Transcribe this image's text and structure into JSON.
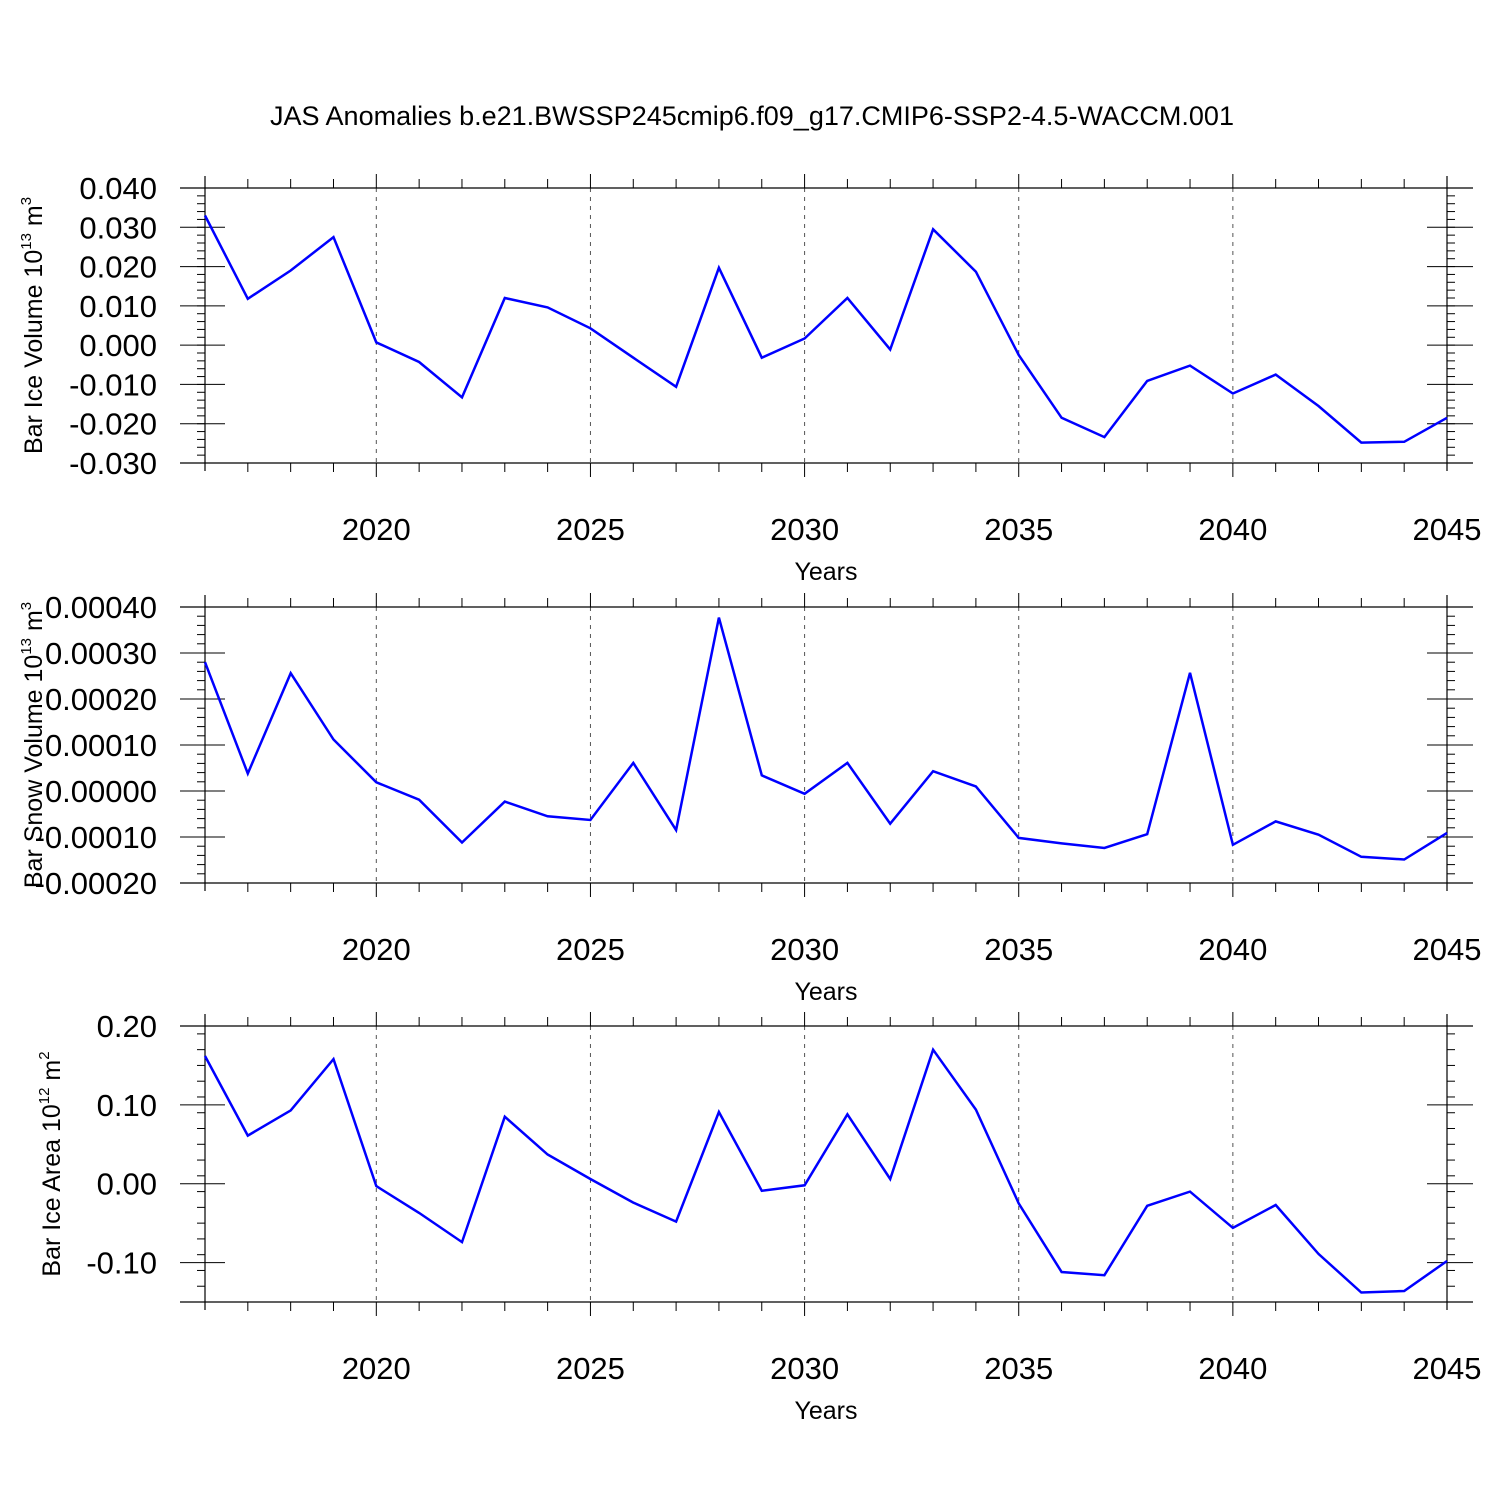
{
  "title": "JAS Anomalies b.e21.BWSSP245cmip6.f09_g17.CMIP6-SSP2-4.5-WACCM.001",
  "chart_data": [
    {
      "type": "line",
      "ylabel": "Bar Ice Volume 10",
      "ylabel_exp": "13",
      "ylabel_unit": " m",
      "ylabel_unit_exp": "3",
      "xlabel": "Years",
      "x": [
        2016,
        2017,
        2018,
        2019,
        2020,
        2021,
        2022,
        2023,
        2024,
        2025,
        2026,
        2027,
        2028,
        2029,
        2030,
        2031,
        2032,
        2033,
        2034,
        2035,
        2036,
        2037,
        2038,
        2039,
        2040,
        2041,
        2042,
        2043,
        2044,
        2045
      ],
      "series": [
        {
          "values": [
            0.033,
            0.0118,
            0.019,
            0.0275,
            0.0007,
            -0.0043,
            -0.0133,
            0.012,
            0.0096,
            0.0043,
            -0.0032,
            -0.0106,
            0.0197,
            -0.0032,
            0.0017,
            0.012,
            -0.0011,
            0.0295,
            0.0187,
            -0.0025,
            -0.0185,
            -0.0234,
            -0.0091,
            -0.0052,
            -0.0123,
            -0.0075,
            -0.0155,
            -0.0248,
            -0.0246,
            -0.0185
          ],
          "color": "#0000ff"
        }
      ],
      "xlim": [
        2016,
        2045
      ],
      "ylim": [
        -0.03,
        0.04
      ],
      "yticks": [
        -0.03,
        -0.02,
        -0.01,
        0.0,
        0.01,
        0.02,
        0.03,
        0.04
      ],
      "yticklabels": [
        "-0.030",
        "-0.020",
        "-0.010",
        "0.000",
        "0.010",
        "0.020",
        "0.030",
        "0.040"
      ],
      "xticks": [
        2020,
        2025,
        2030,
        2035,
        2040,
        2045
      ],
      "xticklabels": [
        "2020",
        "2025",
        "2030",
        "2035",
        "2040",
        "2045"
      ]
    },
    {
      "type": "line",
      "ylabel": "Bar Snow Volume 10",
      "ylabel_exp": "13",
      "ylabel_unit": " m",
      "ylabel_unit_exp": "3",
      "xlabel": "Years",
      "x": [
        2016,
        2017,
        2018,
        2019,
        2020,
        2021,
        2022,
        2023,
        2024,
        2025,
        2026,
        2027,
        2028,
        2029,
        2030,
        2031,
        2032,
        2033,
        2034,
        2035,
        2036,
        2037,
        2038,
        2039,
        2040,
        2041,
        2042,
        2043,
        2044,
        2045
      ],
      "series": [
        {
          "values": [
            0.00028,
            3.8e-05,
            0.000256,
            0.000112,
            1.9e-05,
            -1.9e-05,
            -0.000112,
            -2.3e-05,
            -5.5e-05,
            -6.3e-05,
            6.1e-05,
            -8.5e-05,
            0.000377,
            3.4e-05,
            -6e-06,
            6.1e-05,
            -7.1e-05,
            4.3e-05,
            1e-05,
            -0.000102,
            -0.000114,
            -0.000124,
            -9.4e-05,
            0.000257,
            -0.000117,
            -6.6e-05,
            -9.5e-05,
            -0.000143,
            -0.000149,
            -9.1e-05
          ],
          "color": "#0000ff"
        }
      ],
      "xlim": [
        2016,
        2045
      ],
      "ylim": [
        -0.0002,
        0.0004
      ],
      "yticks": [
        -0.0002,
        -0.0001,
        0.0,
        0.0001,
        0.0002,
        0.0003,
        0.0004
      ],
      "yticklabels": [
        "-0.00020",
        "-0.00010",
        "0.00000",
        "0.00010",
        "0.00020",
        "0.00030",
        "0.00040"
      ],
      "xticks": [
        2020,
        2025,
        2030,
        2035,
        2040,
        2045
      ],
      "xticklabels": [
        "2020",
        "2025",
        "2030",
        "2035",
        "2040",
        "2045"
      ]
    },
    {
      "type": "line",
      "ylabel": "Bar Ice Area 10",
      "ylabel_exp": "12",
      "ylabel_unit": " m",
      "ylabel_unit_exp": "2",
      "xlabel": "Years",
      "x": [
        2016,
        2017,
        2018,
        2019,
        2020,
        2021,
        2022,
        2023,
        2024,
        2025,
        2026,
        2027,
        2028,
        2029,
        2030,
        2031,
        2032,
        2033,
        2034,
        2035,
        2036,
        2037,
        2038,
        2039,
        2040,
        2041,
        2042,
        2043,
        2044,
        2045
      ],
      "series": [
        {
          "values": [
            0.162,
            0.061,
            0.093,
            0.158,
            -0.003,
            -0.037,
            -0.074,
            0.085,
            0.037,
            0.006,
            -0.024,
            -0.048,
            0.091,
            -0.009,
            -0.002,
            0.088,
            0.006,
            0.17,
            0.094,
            -0.025,
            -0.112,
            -0.116,
            -0.028,
            -0.01,
            -0.056,
            -0.027,
            -0.089,
            -0.138,
            -0.136,
            -0.098
          ],
          "color": "#0000ff"
        }
      ],
      "xlim": [
        2016,
        2045
      ],
      "ylim": [
        -0.15,
        0.2
      ],
      "yticks": [
        -0.1,
        0.0,
        0.1,
        0.2
      ],
      "yticklabels": [
        "-0.10",
        "0.00",
        "0.10",
        "0.20"
      ],
      "xticks": [
        2020,
        2025,
        2030,
        2035,
        2040,
        2045
      ],
      "xticklabels": [
        "2020",
        "2025",
        "2030",
        "2035",
        "2040",
        "2045"
      ]
    }
  ]
}
